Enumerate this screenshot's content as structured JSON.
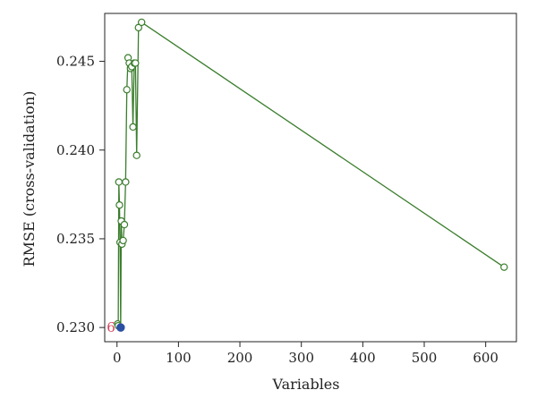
{
  "chart_data": {
    "type": "line",
    "title": "",
    "xlabel": "Variables",
    "ylabel": "RMSE (cross-validation)",
    "xlim": [
      -20,
      650
    ],
    "ylim": [
      0.2292,
      0.2477
    ],
    "xticks": [
      0,
      100,
      200,
      300,
      400,
      500,
      600
    ],
    "yticks": [
      0.23,
      0.235,
      0.24,
      0.245
    ],
    "xtick_labels": [
      "0",
      "100",
      "200",
      "300",
      "400",
      "500",
      "600"
    ],
    "ytick_labels": [
      "0.230",
      "0.235",
      "0.240",
      "0.245"
    ],
    "grid": false,
    "series": [
      {
        "x": [
          1,
          2,
          3,
          4,
          5,
          6,
          7,
          8,
          10,
          12,
          14,
          16,
          18,
          20,
          22,
          24,
          26,
          28,
          30,
          32,
          35,
          40,
          630
        ],
        "y": [
          0.2302,
          0.2301,
          0.2382,
          0.2369,
          0.2348,
          0.23,
          0.236,
          0.2347,
          0.2349,
          0.2358,
          0.2382,
          0.2434,
          0.2452,
          0.2449,
          0.2446,
          0.2447,
          0.2413,
          0.2449,
          0.2449,
          0.2397,
          0.2469,
          0.2472,
          0.2334
        ],
        "color": "#3a7d2c"
      }
    ],
    "highlight": {
      "x": 6,
      "y": 0.23,
      "label": "6",
      "color": "#2b4fa3",
      "label_color": "#d6455b"
    }
  }
}
